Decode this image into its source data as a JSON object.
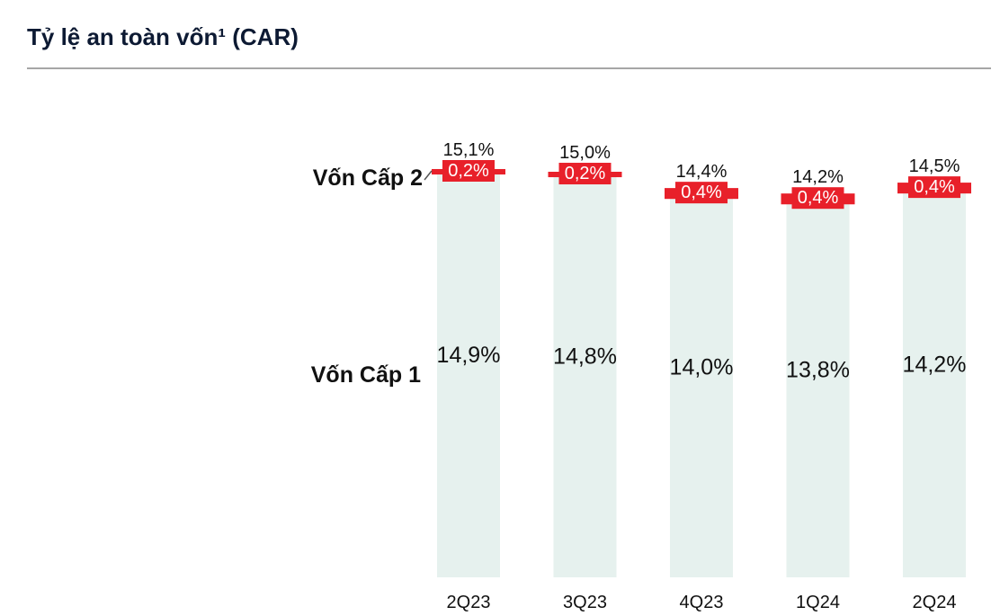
{
  "header": {
    "title": "Tỷ lệ an toàn vốn¹ (CAR)"
  },
  "chart_data": {
    "type": "bar",
    "stacked": true,
    "categories": [
      "2Q23",
      "3Q23",
      "4Q23",
      "1Q24",
      "2Q24"
    ],
    "series": [
      {
        "name": "Vốn Cấp 1",
        "values": [
          14.9,
          14.8,
          14.0,
          13.8,
          14.2
        ],
        "labels": [
          "14,9%",
          "14,8%",
          "14,0%",
          "13,8%",
          "14,2%"
        ]
      },
      {
        "name": "Vốn Cấp 2",
        "values": [
          0.2,
          0.2,
          0.4,
          0.4,
          0.4
        ],
        "labels": [
          "0,2%",
          "0,2%",
          "0,4%",
          "0,4%",
          "0,4%"
        ]
      }
    ],
    "totals": [
      15.1,
      15.0,
      14.4,
      14.2,
      14.5
    ],
    "total_labels": [
      "15,1%",
      "15,0%",
      "14,4%",
      "14,2%",
      "14,5%"
    ],
    "series_label_texts": [
      "Vốn Cấp 2",
      "Vốn Cấp 1"
    ],
    "colors": {
      "tier1": "#e6f1ee",
      "tier2": "#e8202a",
      "text": "#111111",
      "title": "#0d1a33",
      "rule": "#a6a6a6"
    }
  }
}
